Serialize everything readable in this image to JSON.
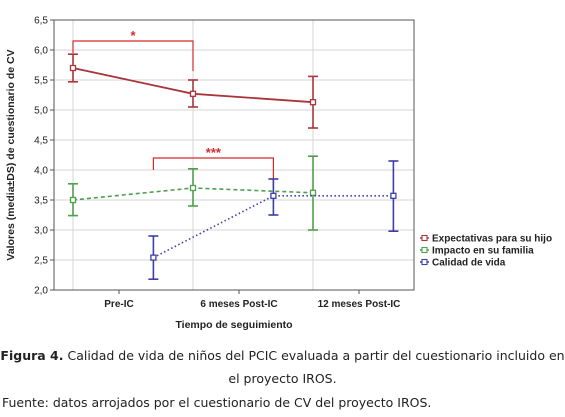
{
  "chart_data": {
    "type": "line",
    "categories": [
      "Pre-IC",
      "6 meses Post-IC",
      "12 meses Post-IC"
    ],
    "xlabel": "Tiempo de seguimiento",
    "ylabel": "Valores  (media±DS)  de  cuestionario de CV",
    "ylim": [
      2.0,
      6.5
    ],
    "yticks": [
      "2,0",
      "2,5",
      "3,0",
      "3,5",
      "4,0",
      "4,5",
      "5,0",
      "5,5",
      "6,0",
      "6,5"
    ],
    "grid": true,
    "legend_position": "right",
    "series": [
      {
        "name": "Expectativas para su hijo",
        "color": "#a8353a",
        "dash": "solid",
        "x": [
          0,
          1,
          2
        ],
        "values": [
          5.7,
          5.27,
          5.13
        ],
        "err_low": [
          5.47,
          5.05,
          4.7
        ],
        "err_high": [
          5.93,
          5.5,
          5.56
        ]
      },
      {
        "name": "Impacto en su familia",
        "color": "#4ea04a",
        "dash": "dashed",
        "x": [
          0,
          1,
          2
        ],
        "values": [
          3.5,
          3.7,
          3.62
        ],
        "err_low": [
          3.24,
          3.4,
          3.0
        ],
        "err_high": [
          3.77,
          4.02,
          4.23
        ]
      },
      {
        "name": "Calidad de vida",
        "color": "#3b3fa6",
        "dash": "dotted",
        "x": [
          0.67,
          1.67,
          2.67
        ],
        "values": [
          2.54,
          3.57,
          3.57
        ],
        "err_low": [
          2.18,
          3.25,
          2.98
        ],
        "err_high": [
          2.9,
          3.85,
          4.15
        ]
      }
    ],
    "annotations": [
      {
        "label": "*",
        "color": "#d42a2a",
        "x_from": 0,
        "x_to": 1,
        "y_top": 6.15
      },
      {
        "label": "***",
        "color": "#d42a2a",
        "x_from": 0.67,
        "x_to": 1.67,
        "y_top": 4.2
      }
    ]
  },
  "caption": {
    "label": "Figura 4.",
    "text": " Calidad de vida de niños del PCIC evaluada a partir del cuestionario incluido en el proyecto IROS."
  },
  "source": "Fuente: datos arrojados por el cuestionario de CV del proyecto IROS."
}
